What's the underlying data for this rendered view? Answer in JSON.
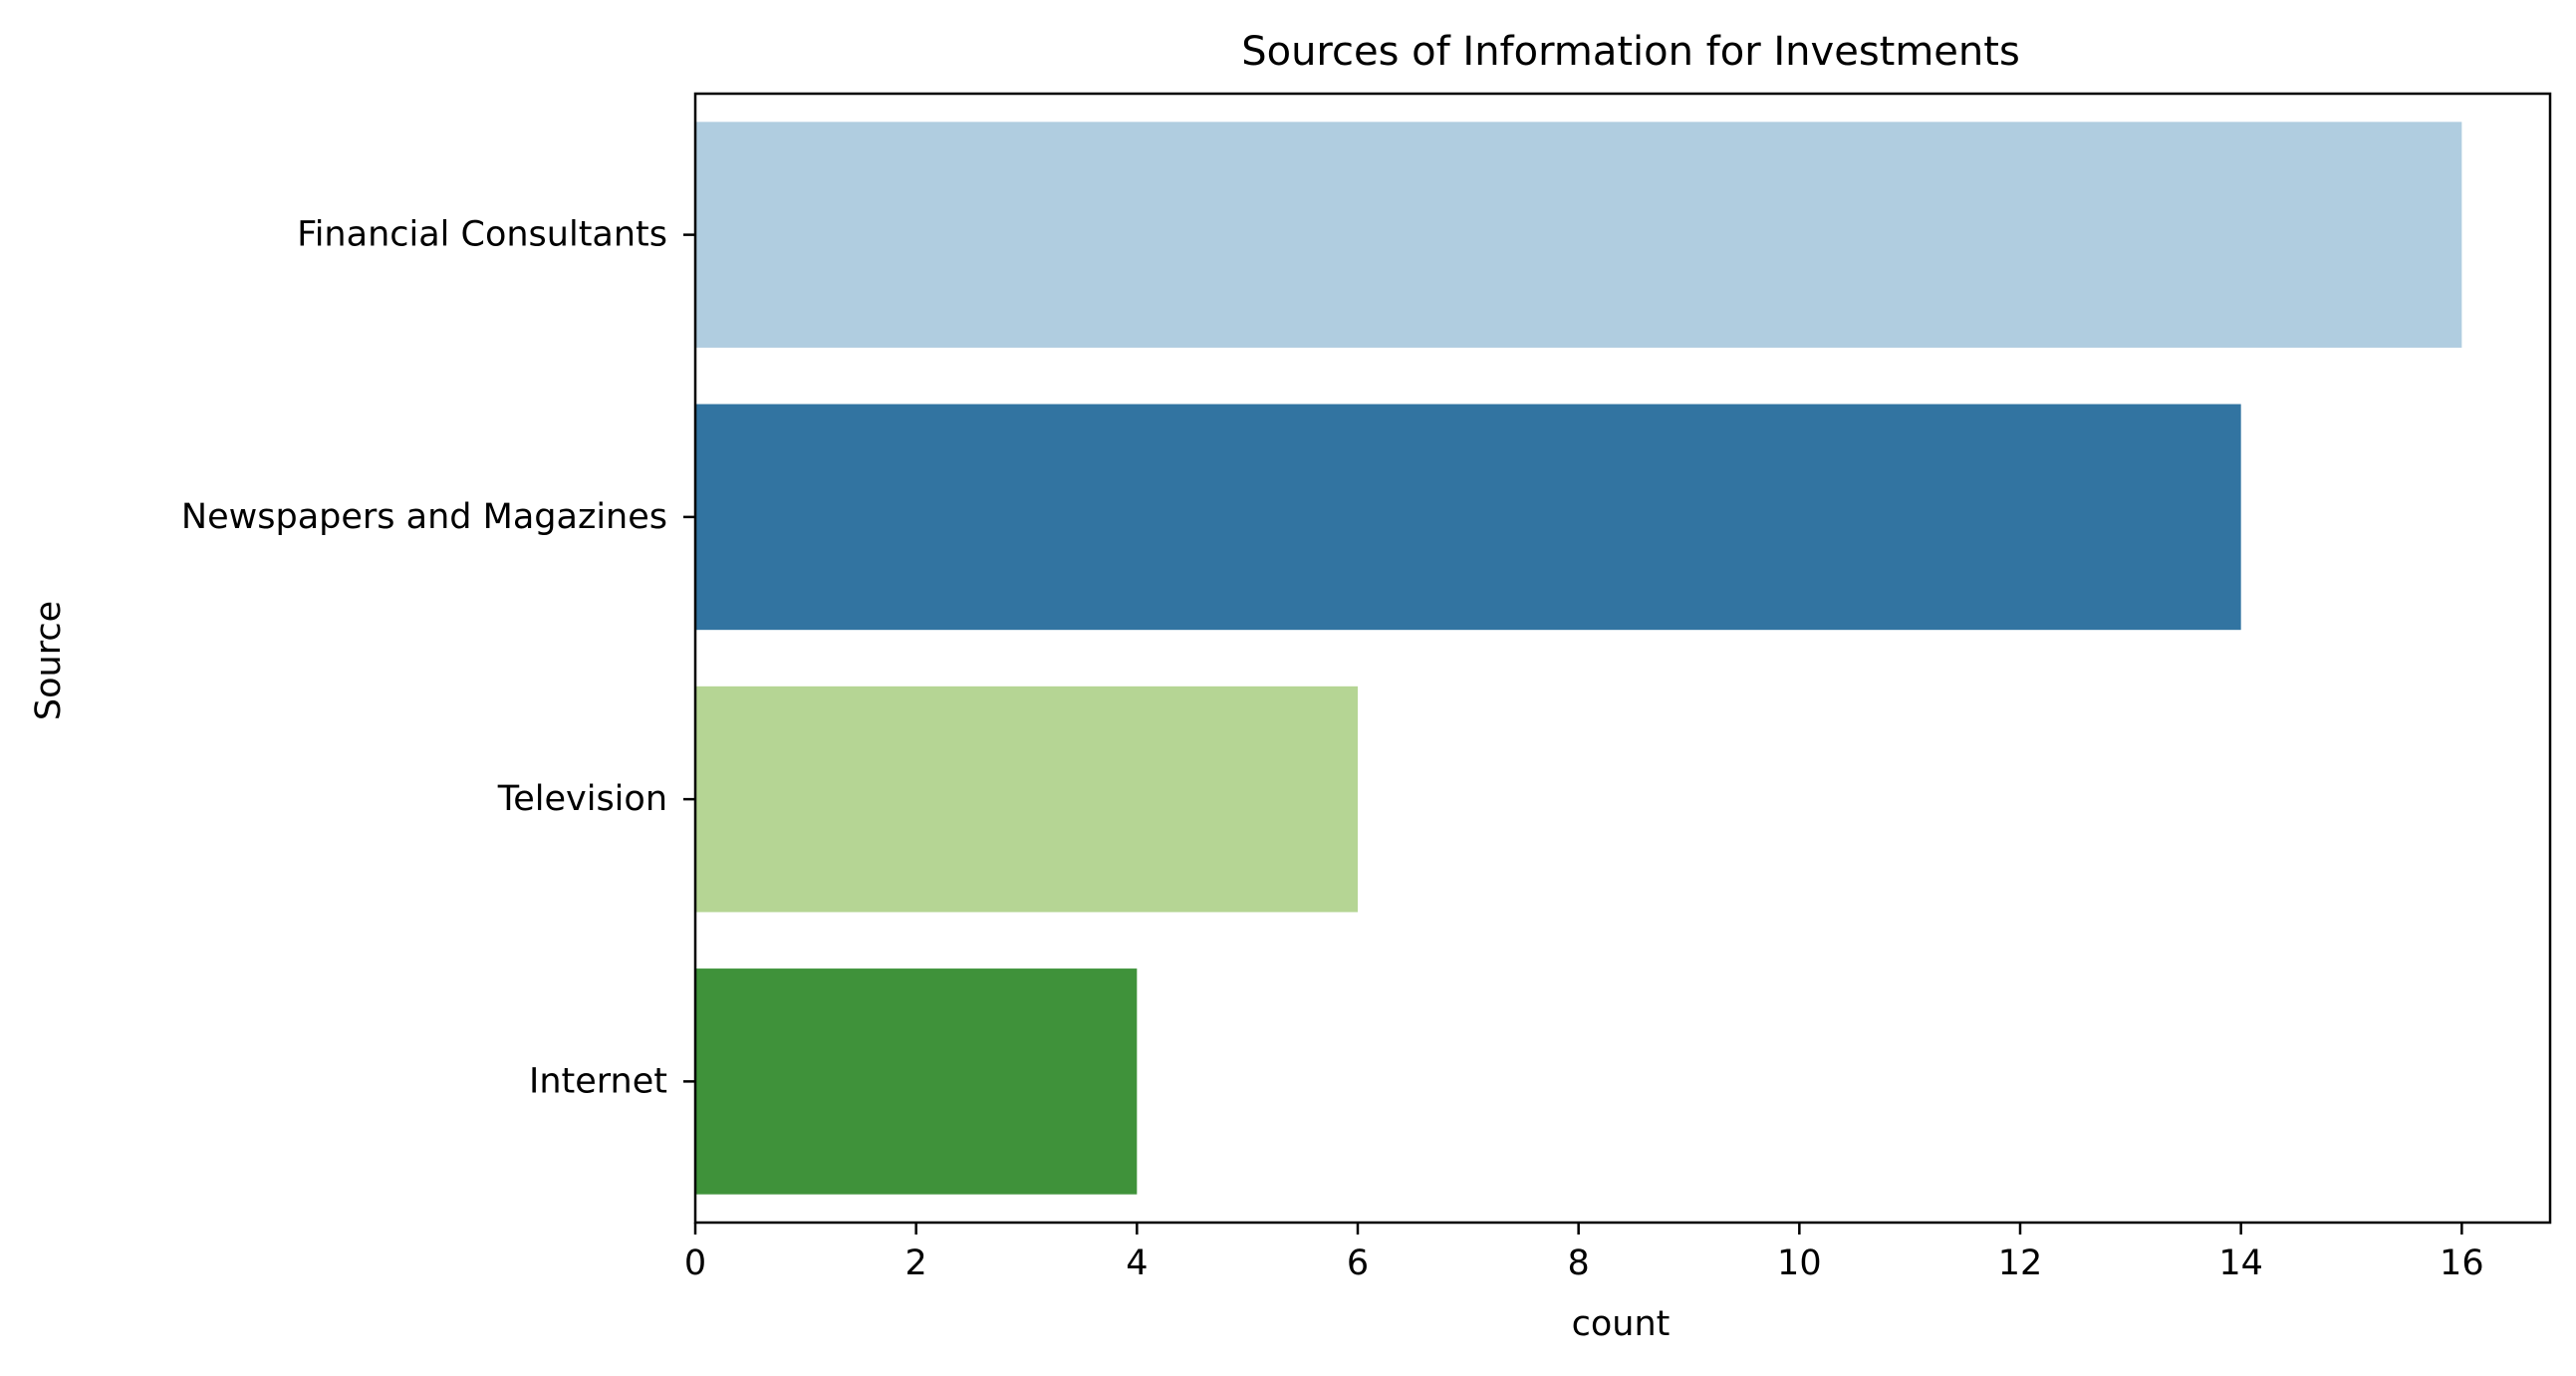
{
  "chart_data": {
    "type": "bar",
    "orientation": "horizontal",
    "title": "Sources of Information for Investments",
    "xlabel": "count",
    "ylabel": "Source",
    "categories": [
      "Financial Consultants",
      "Newspapers and Magazines",
      "Television",
      "Internet"
    ],
    "values": [
      16,
      14,
      6,
      4
    ],
    "colors": [
      "#b0cde0",
      "#3274a1",
      "#b5d594",
      "#3f923a"
    ],
    "xlim": [
      0,
      16.8
    ],
    "xticks": [
      0,
      2,
      4,
      6,
      8,
      10,
      12,
      14,
      16
    ],
    "grid": false,
    "legend": "none"
  }
}
